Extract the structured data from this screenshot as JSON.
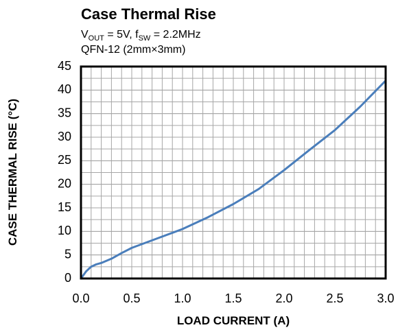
{
  "chart_data": {
    "type": "line",
    "title": "Case Thermal Rise",
    "subtitle": [
      [
        {
          "text": "V"
        },
        {
          "text": "OUT",
          "sub": true
        },
        {
          "text": " = 5V, f"
        },
        {
          "text": "SW",
          "sub": true
        },
        {
          "text": " = 2.2MHz"
        }
      ],
      [
        {
          "text": "QFN-12 (2mm×3mm)"
        }
      ]
    ],
    "xlabel": "LOAD CURRENT (A)",
    "ylabel": "CASE THERMAL RISE (°C)",
    "x": [
      0,
      0.05,
      0.1,
      0.15,
      0.2,
      0.3,
      0.4,
      0.5,
      0.75,
      1.0,
      1.25,
      1.5,
      1.75,
      2.0,
      2.25,
      2.5,
      2.75,
      3.0
    ],
    "series": [
      {
        "color": "#4a7ebb",
        "values": [
          0,
          1.5,
          2.5,
          3.0,
          3.3,
          4.2,
          5.4,
          6.5,
          8.5,
          10.5,
          13.0,
          15.8,
          19.0,
          23.0,
          27.3,
          31.5,
          36.5,
          42.0
        ]
      }
    ],
    "xlim": [
      0,
      3
    ],
    "ylim": [
      0,
      45
    ],
    "xticks": [
      {
        "value": 0,
        "label": "0.0"
      },
      0.5,
      {
        "value": 1,
        "label": "1.0"
      },
      1.5,
      {
        "value": 2,
        "label": "2.0"
      },
      2.5,
      {
        "value": 3,
        "label": "3.0"
      }
    ],
    "yticks": [
      0,
      5,
      10,
      15,
      20,
      25,
      30,
      35,
      40,
      45
    ],
    "grid": true,
    "minor_grid": {
      "x": 0.1,
      "y": 2.5
    }
  }
}
